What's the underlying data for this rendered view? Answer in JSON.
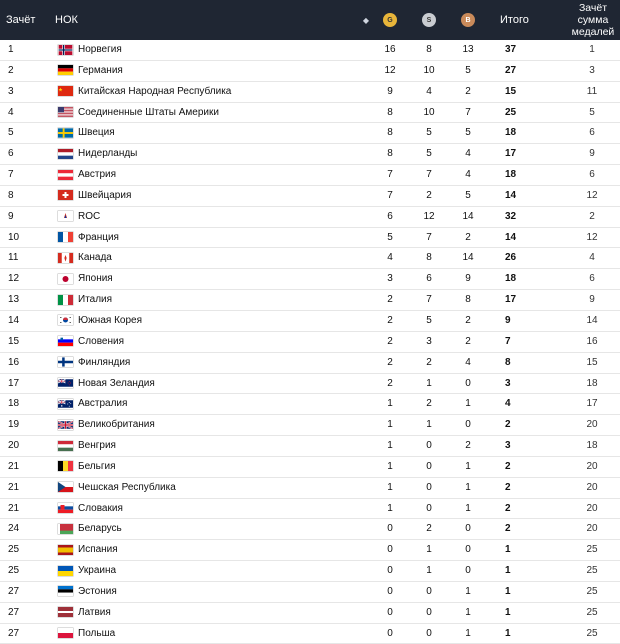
{
  "header": {
    "rank": "Зачёт",
    "noc": "НОК",
    "gold": "G",
    "silver": "S",
    "bronze": "B",
    "total": "Итого",
    "sum_line1": "Зачёт",
    "sum_line2": "сумма",
    "sum_line3": "медалей",
    "sort_icon": "sort-icon"
  },
  "rows": [
    {
      "rank": "1",
      "name": "Норвегия",
      "flag": "flag-norway",
      "g": "16",
      "s": "8",
      "b": "13",
      "total": "37",
      "sum": "1"
    },
    {
      "rank": "2",
      "name": "Германия",
      "flag": "flag-germany",
      "g": "12",
      "s": "10",
      "b": "5",
      "total": "27",
      "sum": "3"
    },
    {
      "rank": "3",
      "name": "Китайская Народная Республика",
      "flag": "flag-china",
      "g": "9",
      "s": "4",
      "b": "2",
      "total": "15",
      "sum": "11"
    },
    {
      "rank": "4",
      "name": "Соединенные Штаты Америки",
      "flag": "flag-usa",
      "g": "8",
      "s": "10",
      "b": "7",
      "total": "25",
      "sum": "5"
    },
    {
      "rank": "5",
      "name": "Швеция",
      "flag": "flag-sweden",
      "g": "8",
      "s": "5",
      "b": "5",
      "total": "18",
      "sum": "6"
    },
    {
      "rank": "6",
      "name": "Нидерланды",
      "flag": "flag-netherlands",
      "g": "8",
      "s": "5",
      "b": "4",
      "total": "17",
      "sum": "9"
    },
    {
      "rank": "7",
      "name": "Австрия",
      "flag": "flag-austria",
      "g": "7",
      "s": "7",
      "b": "4",
      "total": "18",
      "sum": "6"
    },
    {
      "rank": "8",
      "name": "Швейцария",
      "flag": "flag-switzerland",
      "g": "7",
      "s": "2",
      "b": "5",
      "total": "14",
      "sum": "12"
    },
    {
      "rank": "9",
      "name": "ROC",
      "flag": "flag-roc",
      "g": "6",
      "s": "12",
      "b": "14",
      "total": "32",
      "sum": "2"
    },
    {
      "rank": "10",
      "name": "Франция",
      "flag": "flag-france",
      "g": "5",
      "s": "7",
      "b": "2",
      "total": "14",
      "sum": "12"
    },
    {
      "rank": "11",
      "name": "Канада",
      "flag": "flag-canada",
      "g": "4",
      "s": "8",
      "b": "14",
      "total": "26",
      "sum": "4"
    },
    {
      "rank": "12",
      "name": "Япония",
      "flag": "flag-japan",
      "g": "3",
      "s": "6",
      "b": "9",
      "total": "18",
      "sum": "6"
    },
    {
      "rank": "13",
      "name": "Италия",
      "flag": "flag-italy",
      "g": "2",
      "s": "7",
      "b": "8",
      "total": "17",
      "sum": "9"
    },
    {
      "rank": "14",
      "name": "Южная Корея",
      "flag": "flag-south-korea",
      "g": "2",
      "s": "5",
      "b": "2",
      "total": "9",
      "sum": "14"
    },
    {
      "rank": "15",
      "name": "Словения",
      "flag": "flag-slovenia",
      "g": "2",
      "s": "3",
      "b": "2",
      "total": "7",
      "sum": "16"
    },
    {
      "rank": "16",
      "name": "Финляндия",
      "flag": "flag-finland",
      "g": "2",
      "s": "2",
      "b": "4",
      "total": "8",
      "sum": "15"
    },
    {
      "rank": "17",
      "name": "Новая Зеландия",
      "flag": "flag-new-zealand",
      "g": "2",
      "s": "1",
      "b": "0",
      "total": "3",
      "sum": "18"
    },
    {
      "rank": "18",
      "name": "Австралия",
      "flag": "flag-australia",
      "g": "1",
      "s": "2",
      "b": "1",
      "total": "4",
      "sum": "17"
    },
    {
      "rank": "19",
      "name": "Великобритания",
      "flag": "flag-uk",
      "g": "1",
      "s": "1",
      "b": "0",
      "total": "2",
      "sum": "20"
    },
    {
      "rank": "20",
      "name": "Венгрия",
      "flag": "flag-hungary",
      "g": "1",
      "s": "0",
      "b": "2",
      "total": "3",
      "sum": "18"
    },
    {
      "rank": "21",
      "name": "Бельгия",
      "flag": "flag-belgium",
      "g": "1",
      "s": "0",
      "b": "1",
      "total": "2",
      "sum": "20"
    },
    {
      "rank": "21",
      "name": "Чешская Республика",
      "flag": "flag-czech",
      "g": "1",
      "s": "0",
      "b": "1",
      "total": "2",
      "sum": "20"
    },
    {
      "rank": "21",
      "name": "Словакия",
      "flag": "flag-slovakia",
      "g": "1",
      "s": "0",
      "b": "1",
      "total": "2",
      "sum": "20"
    },
    {
      "rank": "24",
      "name": "Беларусь",
      "flag": "flag-belarus",
      "g": "0",
      "s": "2",
      "b": "0",
      "total": "2",
      "sum": "20"
    },
    {
      "rank": "25",
      "name": "Испания",
      "flag": "flag-spain",
      "g": "0",
      "s": "1",
      "b": "0",
      "total": "1",
      "sum": "25"
    },
    {
      "rank": "25",
      "name": "Украина",
      "flag": "flag-ukraine",
      "g": "0",
      "s": "1",
      "b": "0",
      "total": "1",
      "sum": "25"
    },
    {
      "rank": "27",
      "name": "Эстония",
      "flag": "flag-estonia",
      "g": "0",
      "s": "0",
      "b": "1",
      "total": "1",
      "sum": "25"
    },
    {
      "rank": "27",
      "name": "Латвия",
      "flag": "flag-latvia",
      "g": "0",
      "s": "0",
      "b": "1",
      "total": "1",
      "sum": "25"
    },
    {
      "rank": "27",
      "name": "Польша",
      "flag": "flag-poland",
      "g": "0",
      "s": "0",
      "b": "1",
      "total": "1",
      "sum": "25"
    }
  ]
}
